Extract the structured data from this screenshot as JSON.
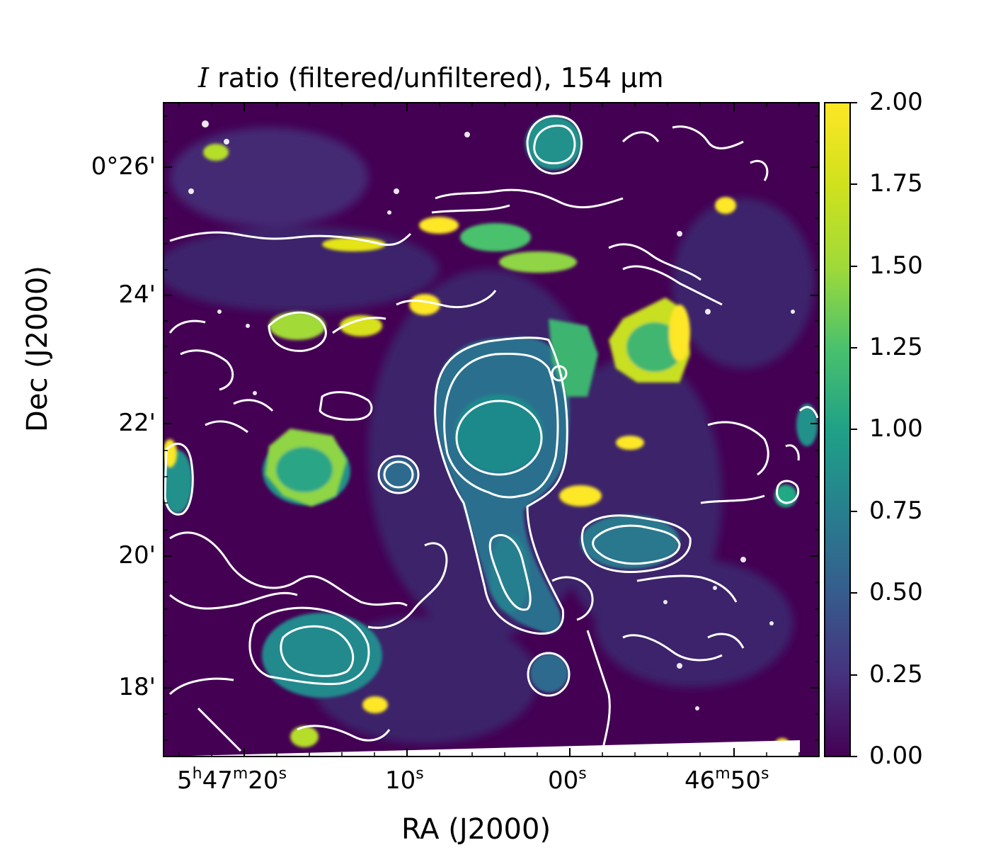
{
  "title_text": "ratio (filtered/unfiltered), 154 μm",
  "title_prefix": "I",
  "xlabel": "RA (J2000)",
  "ylabel": "Dec (J2000)",
  "dec_ticks": [
    "0°26'",
    "24'",
    "22'",
    "20'",
    "18'"
  ],
  "ra_ticks": [
    {
      "h": "5",
      "m": "47",
      "s": "20"
    },
    {
      "s": "10"
    },
    {
      "s": "00"
    },
    {
      "m": "46",
      "s": "50"
    }
  ],
  "ra_units": {
    "h": "h",
    "m": "m",
    "s": "s"
  },
  "colorbar": {
    "ticks": [
      "2.00",
      "1.75",
      "1.50",
      "1.25",
      "1.00",
      "0.75",
      "0.50",
      "0.25",
      "0.00"
    ],
    "colormap": "viridis",
    "range": [
      0,
      2
    ]
  },
  "colors": {
    "background_low": "#440154",
    "mid": "#21918c",
    "high": "#fde725",
    "contours": "#ffffff"
  }
}
